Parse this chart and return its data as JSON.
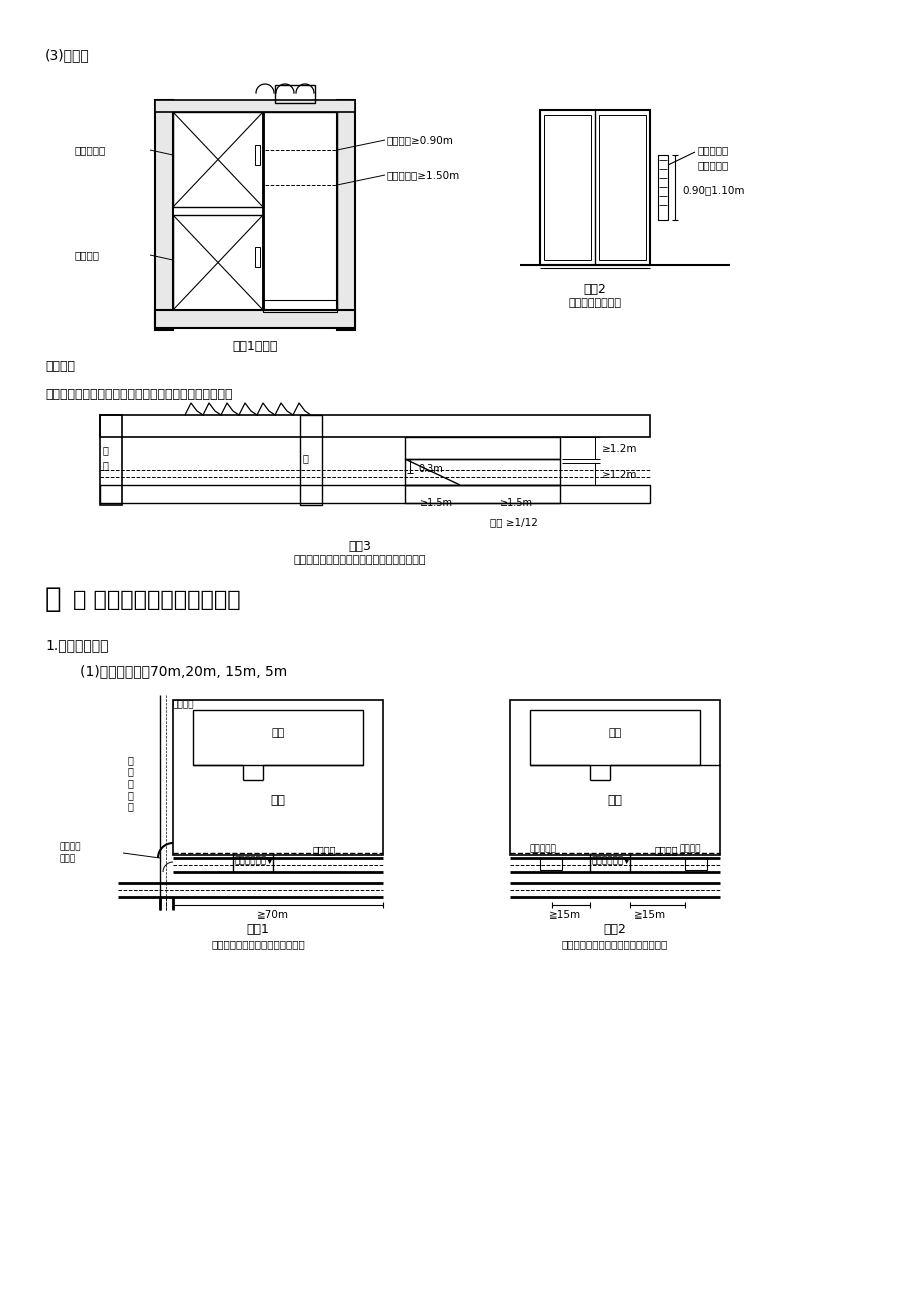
{
  "bg_color": "#ffffff",
  "line_color": "#000000",
  "page_title": "(3)电梯：",
  "fig1_title": "图示1候梯厅",
  "fig2_title": "图示2",
  "fig2_subtitle": "电梯梯厕选层按鈕",
  "fig3_title": "图示3",
  "fig3_subtitle": "设置电梯均民用建筑的入口应设置残疾人坡道",
  "label_houtiting": "候梯厅：",
  "label_poidao": "坡道：（设置电梯的民用建筑的入口应设置残疾人坡道）",
  "section2_bold": "二",
  "section2_rest": "： 城市规划对建筑的限定：",
  "label_1": "1.　建筑基地：",
  "label_1_1": "(1)　基地开口：70m,20m, 15m, 5m",
  "diagram1_fig_title": "图示1",
  "diagram1_fig_subtitle": "基地出入口与城市主干道路交又口",
  "diagram2_fig_title": "图示2",
  "diagram2_fig_subtitle": "基地出入口与公共汽车站台边缘的距离",
  "ann_wuzhangai1": "无障碍电梯",
  "ann_putong": "普通电梯",
  "ann_menku": "门洞净宽≥0.90m",
  "ann_houtiting_depth": "候梯厅深度≥1.50m",
  "ann_wuzhangai2": "无障碍设施",
  "ann_diantiji": "电梯厅按鈕",
  "ann_height": "0.90～1.10m",
  "ann_d1": "≥1.2m",
  "ann_d2": "≥1.2m",
  "ann_d3": "≥1.5m",
  "ann_d4": "≥1.5m",
  "ann_slope": "坡度 ≥1/12",
  "ann_03m": "0.3m",
  "ann_daolu_hongxian": "道路红线",
  "ann_chengshi_zhu1": "城",
  "ann_chengshi_zhu2": "市",
  "ann_chengshi_zhu3": "主",
  "ann_chengshi_zhu4": "干",
  "ann_chengshi_zhu5": "道",
  "ann_jianzhu1": "建筑",
  "ann_jidi1": "基地",
  "ann_jidi2": "基地",
  "ann_daolu_hongxian2": "道路红线",
  "ann_gonggong": "公共汽车站",
  "ann_jidong1": "机动车出入口▼",
  "ann_jidong2": "机动车出入口▼",
  "ann_ditie": "地铁出口",
  "ann_jianzhu2": "建筑",
  "ann_daolu_jiaochadian1": "道路红线",
  "ann_daolu_jiaochadian2": "交又点",
  "ann_70m": "≧70m",
  "ann_15m_1": "≧15m",
  "ann_15m_2": "≧15m",
  "cjk_font": "SimSun",
  "cjk_font_alt": "WenQuanYi Zen Hei",
  "cjk_fonts_list": [
    "SimSun",
    "SimHei",
    "Microsoft YaHei",
    "WenQuanYi Micro Hei",
    "Noto Sans CJK SC",
    "AR PL UMing CN",
    "DejaVu Sans"
  ]
}
